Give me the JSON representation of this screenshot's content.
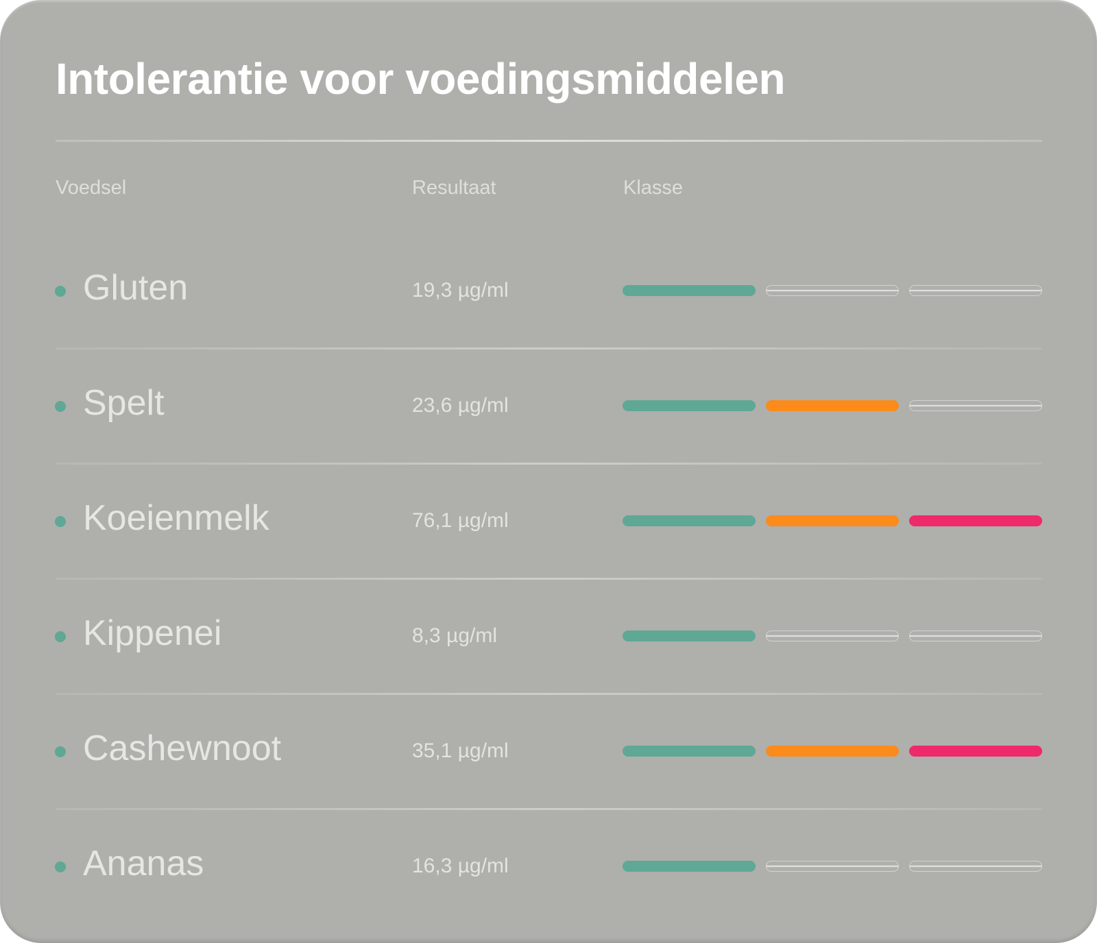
{
  "title": "Intolerantie voor voedingsmiddelen",
  "columns": {
    "food": "Voedsel",
    "result": "Resultaat",
    "class": "Klasse"
  },
  "colors": {
    "dot": "#5ea895",
    "level1": "#5ea895",
    "level2": "#fb8b1b",
    "level3": "#ee2a6a"
  },
  "rows": [
    {
      "food": "Gluten",
      "result": "19,3 µg/ml",
      "class_level": 1
    },
    {
      "food": "Spelt",
      "result": "23,6 µg/ml",
      "class_level": 2
    },
    {
      "food": "Koeienmelk",
      "result": "76,1 µg/ml",
      "class_level": 3
    },
    {
      "food": "Kippenei",
      "result": "8,3 µg/ml",
      "class_level": 1
    },
    {
      "food": "Cashewnoot",
      "result": "35,1 µg/ml",
      "class_level": 3
    },
    {
      "food": "Ananas",
      "result": "16,3 µg/ml",
      "class_level": 1
    }
  ]
}
